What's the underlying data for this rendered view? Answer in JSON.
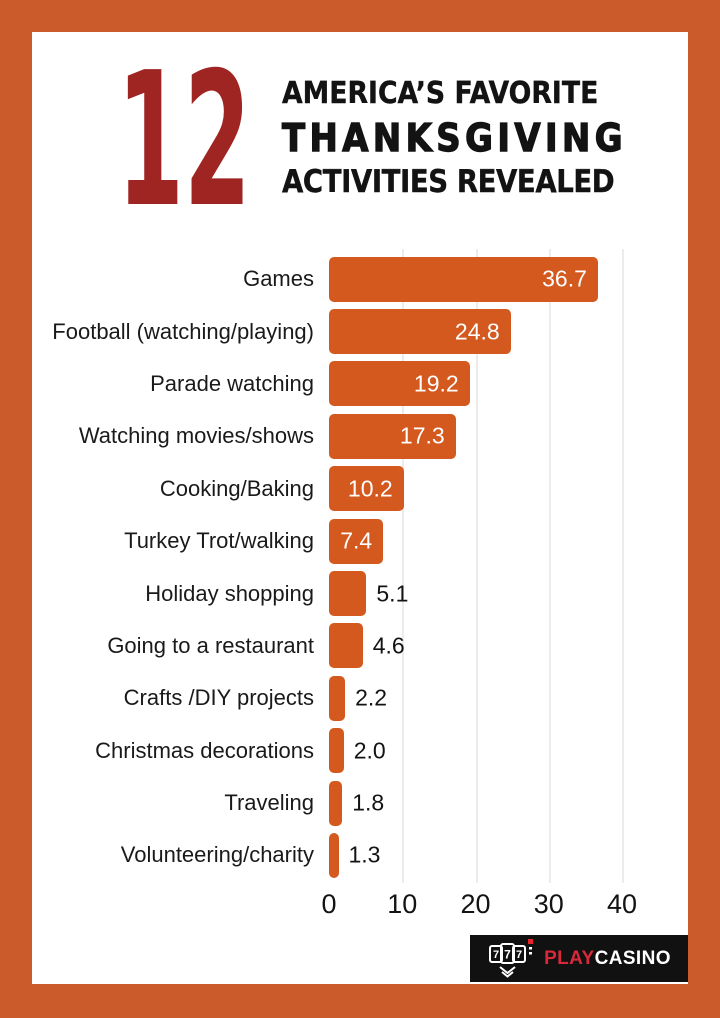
{
  "page": {
    "frame_color": "#cb5b2b",
    "background": "#ffffff"
  },
  "header": {
    "number": "12",
    "number_color": "#9e2521",
    "line1": "AMERICA’S FAVORITE",
    "line2": "THANKSGIVING",
    "line3": "ACTIVITIES REVEALED",
    "text_color": "#131313"
  },
  "chart_data": {
    "type": "bar",
    "orientation": "horizontal",
    "title": "12 America’s Favorite Thanksgiving Activities Revealed",
    "categories": [
      "Games",
      "Football (watching/playing)",
      "Parade watching",
      "Watching movies/shows",
      "Cooking/Baking",
      "Turkey Trot/walking",
      "Holiday shopping",
      "Going to a restaurant",
      "Crafts /DIY projects",
      "Christmas decorations",
      "Traveling",
      "Volunteering/charity"
    ],
    "values": [
      36.7,
      24.8,
      19.2,
      17.3,
      10.2,
      7.4,
      5.1,
      4.6,
      2.2,
      2.0,
      1.8,
      1.3
    ],
    "value_labels": [
      "36.7",
      "24.8",
      "19.2",
      "17.3",
      "10.2",
      "7.4",
      "5.1",
      "4.6",
      "2.2",
      "2.0",
      "1.8",
      "1.3"
    ],
    "x_ticks": [
      "0",
      "10",
      "20",
      "30",
      "40"
    ],
    "x_tick_values": [
      0,
      10,
      20,
      30,
      40
    ],
    "xlim": [
      0,
      49
    ],
    "xlabel": "",
    "ylabel": "",
    "grid": true,
    "legend": false,
    "bar_color": "#d4591f",
    "gridline_color": "#ececec",
    "inside_value_color": "#ffffff",
    "outside_value_color": "#131313",
    "inside_threshold": 7
  },
  "footer": {
    "brand_play": "PLAY",
    "brand_casino": "CASINO",
    "play_color": "#d8293b",
    "casino_color": "#ffffff",
    "logo_bg": "#111111",
    "slot_text": "777",
    "slot_icon_name": "slot-machine-777-icon"
  }
}
